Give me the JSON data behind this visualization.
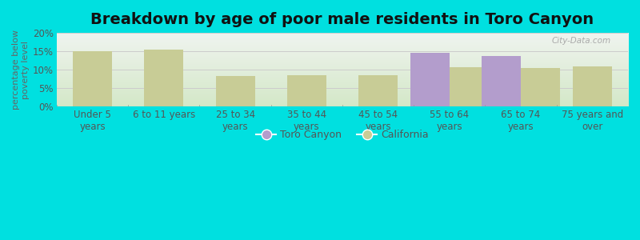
{
  "title": "Breakdown by age of poor male residents in Toro Canyon",
  "ylabel": "percentage below\npoverty level",
  "categories": [
    "Under 5\nyears",
    "6 to 11 years",
    "25 to 34\nyears",
    "35 to 44\nyears",
    "45 to 54\nyears",
    "55 to 64\nyears",
    "65 to 74\nyears",
    "75 years and\nover"
  ],
  "toro_canyon": [
    0,
    0,
    0,
    0,
    0,
    14.7,
    13.7,
    0
  ],
  "california": [
    15.0,
    15.5,
    8.3,
    8.6,
    8.5,
    10.6,
    10.4,
    11.0
  ],
  "toro_color": "#b39dcc",
  "california_color": "#c8cc96",
  "bg_color": "#00e0e0",
  "plot_bg_top": "#f0f4f0",
  "plot_bg_bottom": "#d4e8c8",
  "ylim": [
    0,
    20
  ],
  "yticks": [
    0,
    5,
    10,
    15,
    20
  ],
  "ytick_labels": [
    "0%",
    "5%",
    "10%",
    "15%",
    "20%"
  ],
  "bar_width": 0.55,
  "title_fontsize": 14,
  "axis_label_fontsize": 8,
  "tick_fontsize": 8.5,
  "legend_fontsize": 9,
  "watermark": "City-Data.com"
}
